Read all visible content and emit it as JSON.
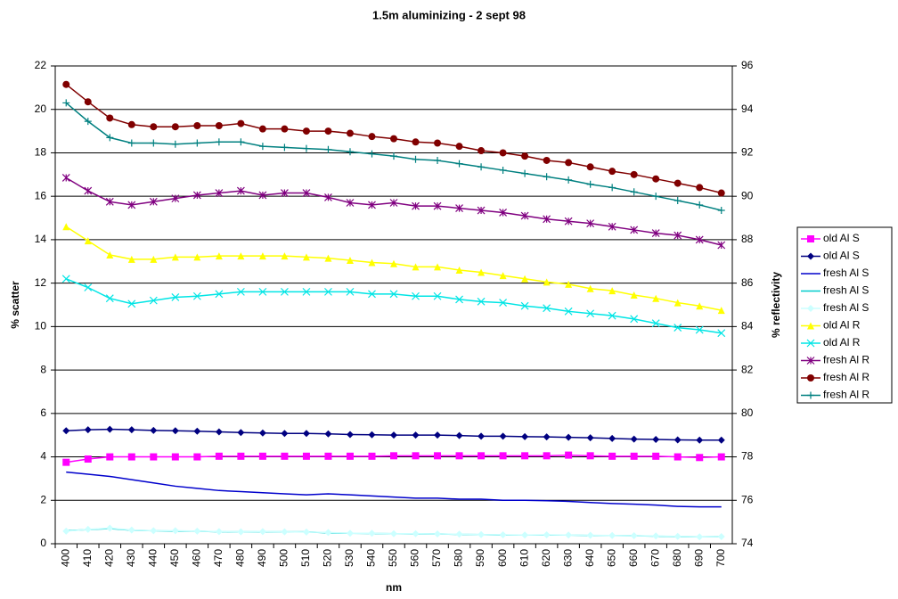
{
  "chart_data": {
    "type": "line",
    "title": "1.5m aluminizing - 2 sept 98",
    "x_label": "nm",
    "y_label": "% scatter",
    "y2_label": "% reflectivity",
    "categories": [
      400,
      410,
      420,
      430,
      440,
      450,
      460,
      470,
      480,
      490,
      500,
      510,
      520,
      530,
      540,
      550,
      560,
      570,
      580,
      590,
      600,
      610,
      620,
      630,
      640,
      650,
      660,
      670,
      680,
      690,
      700
    ],
    "ylim": [
      0,
      22
    ],
    "yticks": [
      0,
      2,
      4,
      6,
      8,
      10,
      12,
      14,
      16,
      18,
      20,
      22
    ],
    "y2lim": [
      74,
      96
    ],
    "y2ticks": [
      74,
      76,
      78,
      80,
      82,
      84,
      86,
      88,
      90,
      92,
      94,
      96
    ],
    "grid": true,
    "legend": "right",
    "series": [
      {
        "name": "old Al  S",
        "color": "#ff00ff",
        "marker": "square",
        "values": [
          3.75,
          3.9,
          4.0,
          4.0,
          4.0,
          4.0,
          4.0,
          4.03,
          4.03,
          4.03,
          4.03,
          4.03,
          4.03,
          4.03,
          4.03,
          4.05,
          4.05,
          4.05,
          4.05,
          4.05,
          4.05,
          4.05,
          4.05,
          4.08,
          4.05,
          4.03,
          4.03,
          4.03,
          4.0,
          3.97,
          4.0
        ]
      },
      {
        "name": "old Al  S",
        "color": "#000080",
        "marker": "diamond",
        "values": [
          5.2,
          5.25,
          5.27,
          5.25,
          5.22,
          5.2,
          5.18,
          5.15,
          5.12,
          5.1,
          5.08,
          5.08,
          5.06,
          5.03,
          5.02,
          5.0,
          5.0,
          5.0,
          4.98,
          4.95,
          4.95,
          4.93,
          4.92,
          4.9,
          4.88,
          4.85,
          4.82,
          4.8,
          4.78,
          4.77,
          4.77
        ]
      },
      {
        "name": "fresh Al S",
        "color": "#0000cc",
        "marker": "none",
        "values": [
          3.3,
          3.2,
          3.1,
          2.95,
          2.8,
          2.65,
          2.55,
          2.45,
          2.4,
          2.35,
          2.3,
          2.25,
          2.3,
          2.25,
          2.2,
          2.15,
          2.1,
          2.1,
          2.05,
          2.05,
          2.0,
          2.0,
          1.98,
          1.95,
          1.9,
          1.85,
          1.82,
          1.78,
          1.72,
          1.7,
          1.7
        ]
      },
      {
        "name": "fresh Al S",
        "color": "#00cccc",
        "marker": "none",
        "values": [
          0.6,
          0.65,
          0.7,
          0.62,
          0.6,
          0.58,
          0.58,
          0.55,
          0.55,
          0.55,
          0.55,
          0.55,
          0.5,
          0.48,
          0.47,
          0.46,
          0.45,
          0.45,
          0.43,
          0.42,
          0.4,
          0.4,
          0.4,
          0.4,
          0.38,
          0.38,
          0.37,
          0.35,
          0.33,
          0.32,
          0.33
        ]
      },
      {
        "name": "fresh Al S",
        "color": "#ccffff",
        "marker": "diamond",
        "values": [
          0.58,
          0.66,
          0.72,
          0.63,
          0.6,
          0.6,
          0.58,
          0.56,
          0.55,
          0.56,
          0.55,
          0.54,
          0.52,
          0.48,
          0.48,
          0.46,
          0.46,
          0.45,
          0.44,
          0.42,
          0.41,
          0.4,
          0.41,
          0.4,
          0.39,
          0.38,
          0.37,
          0.36,
          0.34,
          0.32,
          0.33
        ]
      },
      {
        "name": "old Al R",
        "color": "#ffff00",
        "marker": "triangle",
        "axis": "y2",
        "values": [
          88.6,
          87.95,
          87.3,
          87.1,
          87.1,
          87.2,
          87.2,
          87.25,
          87.25,
          87.25,
          87.25,
          87.2,
          87.15,
          87.05,
          86.95,
          86.9,
          86.75,
          86.75,
          86.6,
          86.5,
          86.35,
          86.2,
          86.05,
          85.95,
          85.75,
          85.65,
          85.45,
          85.3,
          85.1,
          84.95,
          84.75
        ]
      },
      {
        "name": "old Al R",
        "color": "#00e5e5",
        "marker": "x",
        "axis": "y2",
        "values": [
          86.2,
          85.8,
          85.3,
          85.05,
          85.2,
          85.35,
          85.4,
          85.5,
          85.6,
          85.6,
          85.6,
          85.6,
          85.6,
          85.6,
          85.5,
          85.5,
          85.4,
          85.4,
          85.25,
          85.15,
          85.1,
          84.95,
          84.85,
          84.7,
          84.6,
          84.5,
          84.35,
          84.15,
          83.95,
          83.85,
          83.7
        ]
      },
      {
        "name": "fresh Al R",
        "color": "#800080",
        "marker": "star",
        "axis": "y2",
        "values": [
          90.85,
          90.25,
          89.75,
          89.6,
          89.75,
          89.9,
          90.05,
          90.15,
          90.25,
          90.05,
          90.15,
          90.15,
          89.95,
          89.7,
          89.6,
          89.7,
          89.55,
          89.55,
          89.45,
          89.35,
          89.25,
          89.1,
          88.95,
          88.85,
          88.75,
          88.6,
          88.45,
          88.3,
          88.2,
          88.0,
          87.75
        ]
      },
      {
        "name": "fresh Al R",
        "color": "#800000",
        "marker": "circle",
        "axis": "y2",
        "values": [
          95.15,
          94.35,
          93.6,
          93.3,
          93.2,
          93.2,
          93.25,
          93.25,
          93.35,
          93.1,
          93.1,
          93.0,
          93.0,
          92.9,
          92.75,
          92.65,
          92.5,
          92.45,
          92.3,
          92.1,
          92.0,
          91.85,
          91.65,
          91.55,
          91.35,
          91.15,
          91.0,
          90.8,
          90.6,
          90.4,
          90.15
        ]
      },
      {
        "name": "fresh Al R",
        "color": "#008080",
        "marker": "plus",
        "axis": "y2",
        "values": [
          94.3,
          93.45,
          92.7,
          92.45,
          92.45,
          92.4,
          92.45,
          92.5,
          92.5,
          92.3,
          92.25,
          92.2,
          92.15,
          92.05,
          91.95,
          91.85,
          91.7,
          91.65,
          91.5,
          91.35,
          91.2,
          91.05,
          90.9,
          90.75,
          90.55,
          90.4,
          90.2,
          90.0,
          89.8,
          89.6,
          89.35
        ]
      }
    ]
  }
}
